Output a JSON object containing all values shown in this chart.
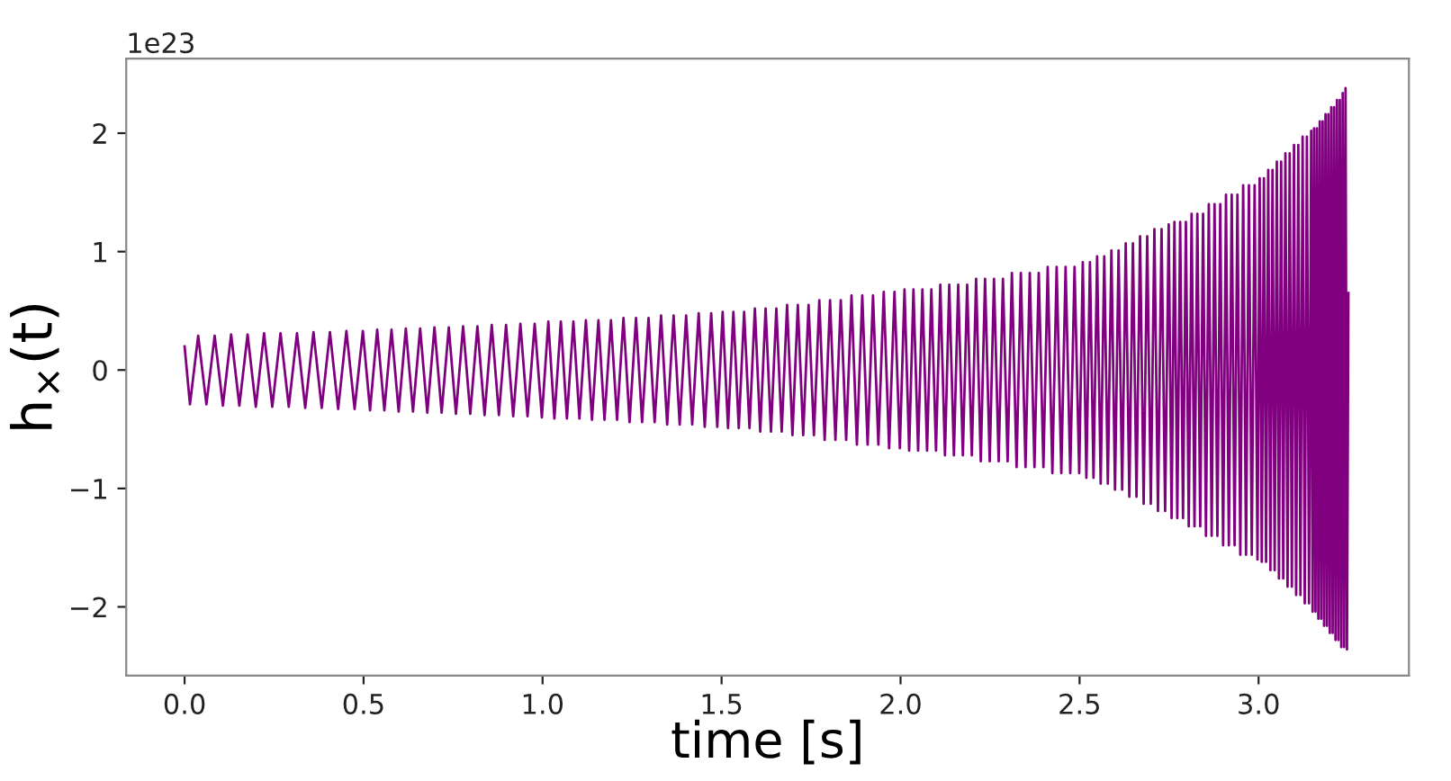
{
  "chart_data": {
    "type": "line",
    "xlabel": "time [s]",
    "ylabel": "h$_{×}$(t)",
    "annotations": [
      "1e23"
    ],
    "xlim": [
      -0.163,
      3.42
    ],
    "ylim": [
      -2.58,
      2.63
    ],
    "xticks": [
      {
        "value": 0,
        "label": "0.0"
      },
      0.5,
      {
        "value": 1,
        "label": "1.0"
      },
      1.5,
      {
        "value": 2,
        "label": "2.0"
      },
      2.5,
      {
        "value": 3,
        "label": "3.0"
      }
    ],
    "yticks": [
      {
        "value": -2,
        "label": "−2"
      },
      {
        "value": -1,
        "label": "−1"
      },
      0,
      1,
      2
    ],
    "grid": false,
    "line_style": "solid",
    "marker": "none",
    "series": [
      {
        "color": "#800080",
        "x": [
          0.0,
          0.015,
          0.038,
          0.061,
          0.084,
          0.107,
          0.13,
          0.153,
          0.176,
          0.199,
          0.222,
          0.245,
          0.268,
          0.291,
          0.314,
          0.337,
          0.36,
          0.383,
          0.406,
          0.429,
          0.452,
          0.475,
          0.498,
          0.518,
          0.538,
          0.558,
          0.578,
          0.598,
          0.618,
          0.638,
          0.658,
          0.678,
          0.698,
          0.718,
          0.738,
          0.758,
          0.778,
          0.798,
          0.818,
          0.838,
          0.858,
          0.878,
          0.898,
          0.918,
          0.938,
          0.958,
          0.978,
          0.998,
          1.016,
          1.033,
          1.051,
          1.068,
          1.086,
          1.103,
          1.121,
          1.138,
          1.156,
          1.173,
          1.191,
          1.208,
          1.226,
          1.243,
          1.261,
          1.278,
          1.296,
          1.313,
          1.331,
          1.348,
          1.366,
          1.383,
          1.401,
          1.418,
          1.436,
          1.453,
          1.471,
          1.488,
          1.503,
          1.518,
          1.533,
          1.548,
          1.563,
          1.578,
          1.593,
          1.608,
          1.623,
          1.638,
          1.653,
          1.668,
          1.683,
          1.698,
          1.713,
          1.728,
          1.743,
          1.758,
          1.773,
          1.788,
          1.803,
          1.818,
          1.833,
          1.848,
          1.863,
          1.878,
          1.893,
          1.908,
          1.923,
          1.938,
          1.953,
          1.968,
          1.983,
          1.998,
          2.011,
          2.024,
          2.036,
          2.049,
          2.061,
          2.074,
          2.086,
          2.099,
          2.111,
          2.124,
          2.136,
          2.149,
          2.161,
          2.174,
          2.186,
          2.199,
          2.211,
          2.224,
          2.236,
          2.249,
          2.261,
          2.274,
          2.286,
          2.299,
          2.311,
          2.324,
          2.336,
          2.349,
          2.361,
          2.374,
          2.386,
          2.399,
          2.411,
          2.424,
          2.436,
          2.449,
          2.461,
          2.474,
          2.486,
          2.499,
          2.509,
          2.519,
          2.529,
          2.539,
          2.549,
          2.559,
          2.569,
          2.579,
          2.589,
          2.599,
          2.609,
          2.619,
          2.629,
          2.639,
          2.649,
          2.659,
          2.669,
          2.679,
          2.689,
          2.699,
          2.709,
          2.719,
          2.729,
          2.739,
          2.749,
          2.757,
          2.765,
          2.773,
          2.781,
          2.789,
          2.797,
          2.805,
          2.813,
          2.821,
          2.829,
          2.837,
          2.845,
          2.853,
          2.861,
          2.869,
          2.877,
          2.885,
          2.893,
          2.901,
          2.909,
          2.917,
          2.925,
          2.933,
          2.941,
          2.949,
          2.957,
          2.965,
          2.973,
          2.981,
          2.989,
          2.997,
          3.003,
          3.009,
          3.015,
          3.021,
          3.027,
          3.033,
          3.039,
          3.045,
          3.051,
          3.057,
          3.063,
          3.069,
          3.075,
          3.081,
          3.087,
          3.093,
          3.099,
          3.105,
          3.111,
          3.117,
          3.123,
          3.129,
          3.135,
          3.141,
          3.147,
          3.151,
          3.155,
          3.159,
          3.163,
          3.167,
          3.171,
          3.175,
          3.179,
          3.183,
          3.187,
          3.191,
          3.195,
          3.199,
          3.203,
          3.207,
          3.211,
          3.215,
          3.219,
          3.223,
          3.227,
          3.231,
          3.235,
          3.239,
          3.243,
          3.247,
          3.251
        ],
        "values": [
          0.2,
          -0.29,
          0.29,
          -0.29,
          0.29,
          -0.3,
          0.3,
          -0.3,
          0.3,
          -0.31,
          0.31,
          -0.31,
          0.31,
          -0.31,
          0.31,
          -0.32,
          0.32,
          -0.32,
          0.32,
          -0.33,
          0.33,
          -0.33,
          0.33,
          -0.34,
          0.34,
          -0.34,
          0.34,
          -0.35,
          0.35,
          -0.35,
          0.35,
          -0.36,
          0.36,
          -0.36,
          0.36,
          -0.37,
          0.37,
          -0.37,
          0.37,
          -0.38,
          0.38,
          -0.38,
          0.38,
          -0.39,
          0.39,
          -0.39,
          0.39,
          -0.4,
          0.41,
          -0.41,
          0.41,
          -0.41,
          0.41,
          -0.41,
          0.42,
          -0.42,
          0.42,
          -0.42,
          0.42,
          -0.42,
          0.44,
          -0.44,
          0.44,
          -0.44,
          0.44,
          -0.44,
          0.46,
          -0.46,
          0.46,
          -0.46,
          0.46,
          -0.46,
          0.48,
          -0.48,
          0.48,
          -0.48,
          0.49,
          -0.49,
          0.49,
          -0.49,
          0.49,
          -0.49,
          0.52,
          -0.52,
          0.52,
          -0.52,
          0.52,
          -0.52,
          0.55,
          -0.55,
          0.55,
          -0.55,
          0.55,
          -0.55,
          0.59,
          -0.59,
          0.59,
          -0.59,
          0.59,
          -0.59,
          0.63,
          -0.63,
          0.63,
          -0.63,
          0.63,
          -0.63,
          0.66,
          -0.66,
          0.66,
          -0.66,
          0.68,
          -0.68,
          0.68,
          -0.68,
          0.68,
          -0.68,
          0.68,
          -0.68,
          0.72,
          -0.72,
          0.72,
          -0.72,
          0.72,
          -0.72,
          0.72,
          -0.72,
          0.77,
          -0.77,
          0.77,
          -0.77,
          0.77,
          -0.77,
          0.77,
          -0.77,
          0.82,
          -0.82,
          0.82,
          -0.82,
          0.82,
          -0.82,
          0.82,
          -0.82,
          0.87,
          -0.87,
          0.87,
          -0.87,
          0.87,
          -0.87,
          0.87,
          -0.87,
          0.91,
          -0.91,
          0.91,
          -0.91,
          0.96,
          -0.96,
          0.96,
          -0.96,
          1.01,
          -1.01,
          1.01,
          -1.01,
          1.07,
          -1.07,
          1.07,
          -1.07,
          1.13,
          -1.13,
          1.13,
          -1.13,
          1.19,
          -1.19,
          1.19,
          -1.19,
          1.23,
          -1.25,
          1.25,
          -1.25,
          1.25,
          -1.25,
          1.25,
          -1.32,
          1.32,
          -1.32,
          1.32,
          -1.32,
          1.32,
          -1.4,
          1.4,
          -1.4,
          1.4,
          -1.4,
          1.4,
          -1.48,
          1.48,
          -1.48,
          1.48,
          -1.48,
          1.48,
          -1.56,
          1.56,
          -1.56,
          1.56,
          -1.56,
          1.56,
          -1.6,
          1.62,
          -1.62,
          1.62,
          -1.62,
          1.69,
          -1.69,
          1.69,
          -1.69,
          1.76,
          -1.76,
          1.76,
          -1.76,
          1.83,
          -1.83,
          1.83,
          -1.83,
          1.9,
          -1.9,
          1.9,
          -1.9,
          1.97,
          -1.97,
          1.97,
          -1.97,
          2.02,
          -2.04,
          2.04,
          -2.04,
          2.04,
          -2.1,
          2.1,
          -2.1,
          2.1,
          -2.16,
          2.16,
          -2.16,
          2.16,
          -2.22,
          2.22,
          -2.22,
          2.22,
          -2.28,
          2.28,
          -2.28,
          2.28,
          -2.34,
          2.34,
          -2.34,
          2.38,
          -2.36,
          0.65
        ]
      }
    ]
  }
}
